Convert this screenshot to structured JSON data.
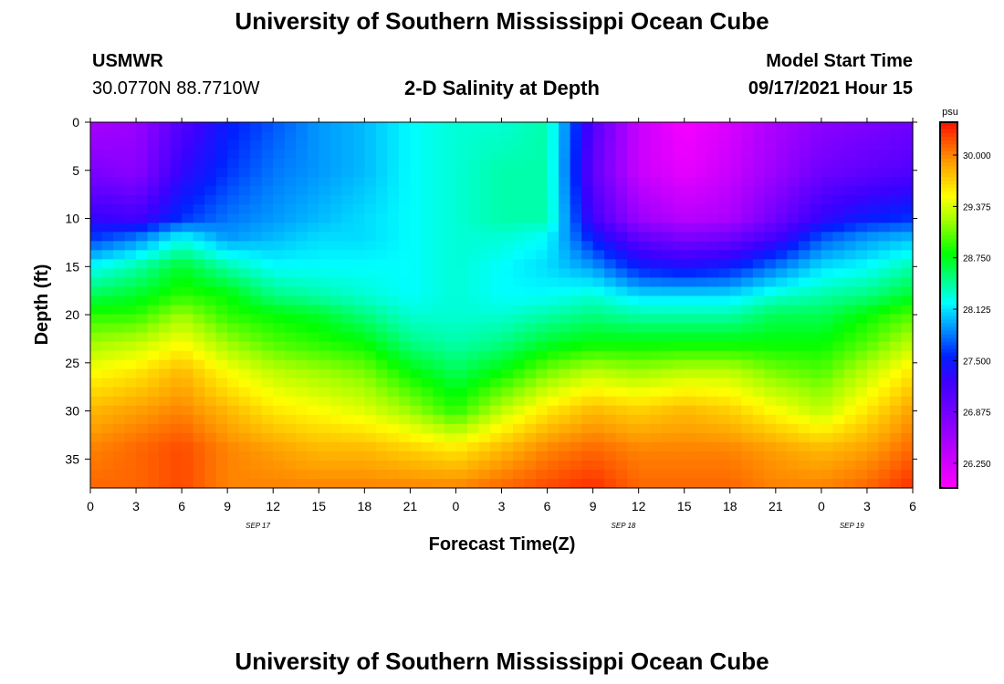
{
  "header": {
    "title": "University of Southern Mississippi Ocean Cube",
    "station_name": "USMWR",
    "station_coords": "30.0770N  88.7710W",
    "plot_title": "2-D Salinity at Depth",
    "model_label": "Model Start Time",
    "model_time": "09/17/2021 Hour 15"
  },
  "footer": {
    "title": "University of Southern Mississippi Ocean Cube"
  },
  "chart_data": {
    "type": "heatmap",
    "title": "2-D Salinity at Depth",
    "xlabel": "Forecast Time(Z)",
    "ylabel": "Depth (ft)",
    "x_tick_labels": [
      "0",
      "3",
      "6",
      "9",
      "12",
      "15",
      "18",
      "21",
      "0",
      "3",
      "6",
      "9",
      "12",
      "15",
      "18",
      "21",
      "0",
      "3",
      "6"
    ],
    "x_hours": [
      0,
      3,
      6,
      9,
      12,
      15,
      18,
      21,
      24,
      27,
      30,
      33,
      36,
      39,
      42,
      45,
      48,
      51,
      54
    ],
    "date_labels": [
      {
        "label": "SEP 17",
        "hour": 11
      },
      {
        "label": "SEP 18",
        "hour": 35
      },
      {
        "label": "SEP 19",
        "hour": 50
      }
    ],
    "xlim": [
      0,
      54
    ],
    "y_ticks": [
      0,
      5,
      10,
      15,
      20,
      25,
      30,
      35
    ],
    "ylim": [
      0,
      38
    ],
    "y_inverted": true,
    "colorbar": {
      "unit": "psu",
      "range": [
        25.95,
        30.4
      ],
      "tick_labels": [
        "30.000",
        "29.375",
        "28.750",
        "28.125",
        "27.500",
        "26.875",
        "26.250"
      ],
      "tick_values": [
        30.0,
        29.375,
        28.75,
        28.125,
        27.5,
        26.875,
        26.25
      ],
      "colors": [
        {
          "value": 25.95,
          "color": "#ff00ff"
        },
        {
          "value": 26.6,
          "color": "#9b00ff"
        },
        {
          "value": 27.25,
          "color": "#3c00ff"
        },
        {
          "value": 27.55,
          "color": "#0020ff"
        },
        {
          "value": 27.9,
          "color": "#0098ff"
        },
        {
          "value": 28.2,
          "color": "#00ffff"
        },
        {
          "value": 28.5,
          "color": "#00ff80"
        },
        {
          "value": 28.8,
          "color": "#00ff00"
        },
        {
          "value": 29.2,
          "color": "#a0ff00"
        },
        {
          "value": 29.5,
          "color": "#ffff00"
        },
        {
          "value": 29.9,
          "color": "#ffa000"
        },
        {
          "value": 30.4,
          "color": "#ff1000"
        }
      ]
    },
    "depth_rows": [
      0,
      5,
      10,
      12,
      15,
      18,
      20,
      23,
      26,
      30,
      34,
      38
    ],
    "time_columns": [
      {
        "hour": 0,
        "salinity": [
          26.5,
          26.8,
          27.3,
          27.6,
          28.2,
          28.6,
          28.9,
          29.2,
          29.5,
          29.8,
          30.0,
          30.1
        ]
      },
      {
        "hour": 3,
        "salinity": [
          26.6,
          26.7,
          27.2,
          27.8,
          28.4,
          28.7,
          28.9,
          29.3,
          29.6,
          29.9,
          30.1,
          30.1
        ]
      },
      {
        "hour": 6,
        "salinity": [
          27.1,
          27.3,
          27.6,
          28.2,
          28.7,
          28.9,
          29.2,
          29.5,
          29.8,
          30.0,
          30.2,
          30.2
        ]
      },
      {
        "hour": 9,
        "salinity": [
          27.5,
          27.6,
          27.8,
          27.9,
          28.4,
          28.8,
          28.9,
          29.2,
          29.5,
          29.8,
          30.0,
          30.0
        ]
      },
      {
        "hour": 12,
        "salinity": [
          27.7,
          27.8,
          27.9,
          28.0,
          28.2,
          28.5,
          28.8,
          29.0,
          29.3,
          29.6,
          29.9,
          30.0
        ]
      },
      {
        "hour": 15,
        "salinity": [
          27.9,
          27.9,
          28.0,
          28.1,
          28.2,
          28.4,
          28.7,
          28.9,
          29.2,
          29.5,
          29.8,
          30.0
        ]
      },
      {
        "hour": 18,
        "salinity": [
          28.0,
          28.0,
          28.1,
          28.1,
          28.2,
          28.3,
          28.5,
          28.8,
          29.1,
          29.4,
          29.8,
          30.0
        ]
      },
      {
        "hour": 21,
        "salinity": [
          28.2,
          28.2,
          28.2,
          28.2,
          28.2,
          28.2,
          28.3,
          28.5,
          28.8,
          29.2,
          29.7,
          30.0
        ]
      },
      {
        "hour": 24,
        "salinity": [
          28.3,
          28.3,
          28.3,
          28.3,
          28.3,
          28.3,
          28.3,
          28.4,
          28.6,
          28.9,
          29.6,
          30.0
        ]
      },
      {
        "hour": 27,
        "salinity": [
          28.3,
          28.4,
          28.4,
          28.3,
          28.2,
          28.2,
          28.3,
          28.5,
          28.8,
          29.3,
          29.8,
          30.1
        ]
      },
      {
        "hour": 30,
        "salinity": [
          28.4,
          28.4,
          28.4,
          28.2,
          28.1,
          28.2,
          28.4,
          28.7,
          29.1,
          29.6,
          30.0,
          30.2
        ]
      },
      {
        "hour": 33,
        "salinity": [
          27.1,
          27.0,
          27.2,
          27.5,
          27.9,
          28.3,
          28.5,
          28.8,
          29.3,
          29.8,
          30.1,
          30.3
        ]
      },
      {
        "hour": 36,
        "salinity": [
          26.3,
          26.3,
          26.6,
          27.0,
          27.5,
          28.1,
          28.4,
          28.8,
          29.2,
          29.7,
          30.0,
          30.1
        ]
      },
      {
        "hour": 39,
        "salinity": [
          26.0,
          26.1,
          26.4,
          26.8,
          27.4,
          28.1,
          28.4,
          28.8,
          29.3,
          29.8,
          30.0,
          30.1
        ]
      },
      {
        "hour": 42,
        "salinity": [
          26.2,
          26.3,
          26.5,
          26.9,
          27.5,
          28.1,
          28.4,
          28.8,
          29.3,
          29.7,
          30.0,
          30.1
        ]
      },
      {
        "hour": 45,
        "salinity": [
          26.5,
          26.6,
          26.9,
          27.2,
          27.8,
          28.3,
          28.6,
          28.8,
          29.1,
          29.5,
          29.9,
          30.0
        ]
      },
      {
        "hour": 48,
        "salinity": [
          26.7,
          26.9,
          27.3,
          27.7,
          28.1,
          28.4,
          28.6,
          28.8,
          29.0,
          29.3,
          29.8,
          30.0
        ]
      },
      {
        "hour": 51,
        "salinity": [
          26.8,
          27.0,
          27.5,
          27.9,
          28.2,
          28.5,
          28.8,
          29.0,
          29.3,
          29.6,
          29.9,
          30.1
        ]
      },
      {
        "hour": 54,
        "salinity": [
          26.9,
          27.1,
          27.6,
          28.0,
          28.4,
          28.7,
          29.0,
          29.3,
          29.6,
          29.9,
          30.1,
          30.3
        ]
      }
    ]
  }
}
